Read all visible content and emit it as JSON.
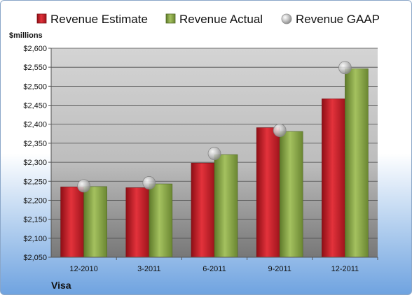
{
  "chart_data": {
    "type": "bar",
    "title": "",
    "company": "Visa",
    "ylabel": "$millions",
    "xlabel": "",
    "ylim": [
      2050,
      2600
    ],
    "yticks": [
      2050,
      2100,
      2150,
      2200,
      2250,
      2300,
      2350,
      2400,
      2450,
      2500,
      2550,
      2600
    ],
    "ytick_labels": [
      "$2,050",
      "$2,100",
      "$2,150",
      "$2,200",
      "$2,250",
      "$2,300",
      "$2,350",
      "$2,400",
      "$2,450",
      "$2,500",
      "$2,550",
      "$2,600"
    ],
    "categories": [
      "12-2010",
      "3-2011",
      "6-2011",
      "9-2011",
      "12-2011"
    ],
    "grid": true,
    "legend_position": "top",
    "series": [
      {
        "name": "Revenue Estimate",
        "kind": "bar",
        "color": "#d0202a",
        "values": [
          2235,
          2233,
          2298,
          2391,
          2467
        ]
      },
      {
        "name": "Revenue Actual",
        "kind": "bar",
        "color": "#8fae4c",
        "values": [
          2236,
          2243,
          2320,
          2381,
          2546
        ]
      },
      {
        "name": "Revenue GAAP",
        "kind": "marker",
        "color": "#b8b8b8",
        "values": [
          2238,
          2246,
          2323,
          2384,
          2549
        ]
      }
    ]
  }
}
